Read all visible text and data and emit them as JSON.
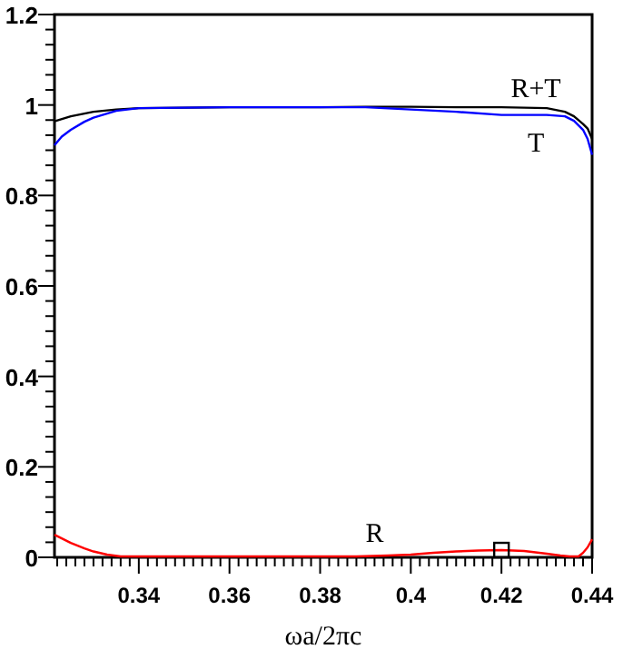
{
  "chart_data": {
    "type": "line",
    "xlabel": "ωa/2πc",
    "xlim": [
      0.3214,
      0.44
    ],
    "xticks": [
      0.34,
      0.36,
      0.38,
      0.4,
      0.42,
      0.44,
      {
        "value": 0.322,
        "label": null
      },
      {
        "value": 0.324,
        "label": null
      },
      {
        "value": 0.326,
        "label": null
      },
      {
        "value": 0.328,
        "label": null
      },
      {
        "value": 0.33,
        "label": null
      },
      {
        "value": 0.332,
        "label": null
      },
      {
        "value": 0.334,
        "label": null
      },
      {
        "value": 0.336,
        "label": null
      },
      {
        "value": 0.338,
        "label": null
      },
      {
        "value": 0.342,
        "label": null
      },
      {
        "value": 0.344,
        "label": null
      },
      {
        "value": 0.346,
        "label": null
      },
      {
        "value": 0.348,
        "label": null
      },
      {
        "value": 0.35,
        "label": null
      },
      {
        "value": 0.352,
        "label": null
      },
      {
        "value": 0.354,
        "label": null
      },
      {
        "value": 0.356,
        "label": null
      },
      {
        "value": 0.358,
        "label": null
      },
      {
        "value": 0.362,
        "label": null
      },
      {
        "value": 0.364,
        "label": null
      },
      {
        "value": 0.366,
        "label": null
      },
      {
        "value": 0.368,
        "label": null
      },
      {
        "value": 0.37,
        "label": null
      },
      {
        "value": 0.372,
        "label": null
      },
      {
        "value": 0.374,
        "label": null
      },
      {
        "value": 0.376,
        "label": null
      },
      {
        "value": 0.378,
        "label": null
      },
      {
        "value": 0.382,
        "label": null
      },
      {
        "value": 0.384,
        "label": null
      },
      {
        "value": 0.386,
        "label": null
      },
      {
        "value": 0.388,
        "label": null
      },
      {
        "value": 0.39,
        "label": null
      },
      {
        "value": 0.392,
        "label": null
      },
      {
        "value": 0.394,
        "label": null
      },
      {
        "value": 0.396,
        "label": null
      },
      {
        "value": 0.398,
        "label": null
      },
      {
        "value": 0.402,
        "label": null
      },
      {
        "value": 0.404,
        "label": null
      },
      {
        "value": 0.406,
        "label": null
      },
      {
        "value": 0.408,
        "label": null
      },
      {
        "value": 0.41,
        "label": null
      },
      {
        "value": 0.412,
        "label": null
      },
      {
        "value": 0.414,
        "label": null
      },
      {
        "value": 0.416,
        "label": null
      },
      {
        "value": 0.418,
        "label": null
      },
      {
        "value": 0.422,
        "label": null
      },
      {
        "value": 0.424,
        "label": null
      },
      {
        "value": 0.426,
        "label": null
      },
      {
        "value": 0.428,
        "label": null
      },
      {
        "value": 0.43,
        "label": null
      },
      {
        "value": 0.432,
        "label": null
      },
      {
        "value": 0.434,
        "label": null
      },
      {
        "value": 0.436,
        "label": null
      },
      {
        "value": 0.438,
        "label": null
      }
    ],
    "ylim": [
      0,
      1.2
    ],
    "yticks": [
      0,
      0.2,
      0.4,
      0.6,
      0.8,
      1,
      1.2,
      {
        "value": 0.0333,
        "label": null
      },
      {
        "value": 0.0667,
        "label": null
      },
      {
        "value": 0.1,
        "label": null
      },
      {
        "value": 0.1333,
        "label": null
      },
      {
        "value": 0.1667,
        "label": null
      },
      {
        "value": 0.2333,
        "label": null
      },
      {
        "value": 0.2667,
        "label": null
      },
      {
        "value": 0.3,
        "label": null
      },
      {
        "value": 0.3333,
        "label": null
      },
      {
        "value": 0.3667,
        "label": null
      },
      {
        "value": 0.4333,
        "label": null
      },
      {
        "value": 0.4667,
        "label": null
      },
      {
        "value": 0.5,
        "label": null
      },
      {
        "value": 0.5333,
        "label": null
      },
      {
        "value": 0.5667,
        "label": null
      },
      {
        "value": 0.6333,
        "label": null
      },
      {
        "value": 0.6667,
        "label": null
      },
      {
        "value": 0.7,
        "label": null
      },
      {
        "value": 0.7333,
        "label": null
      },
      {
        "value": 0.7667,
        "label": null
      },
      {
        "value": 0.8333,
        "label": null
      },
      {
        "value": 0.8667,
        "label": null
      },
      {
        "value": 0.9,
        "label": null
      },
      {
        "value": 0.9333,
        "label": null
      },
      {
        "value": 0.9667,
        "label": null
      },
      {
        "value": 1.0333,
        "label": null
      },
      {
        "value": 1.0667,
        "label": null
      },
      {
        "value": 1.1,
        "label": null
      },
      {
        "value": 1.1333,
        "label": null
      },
      {
        "value": 1.1667,
        "label": null
      }
    ],
    "grid": false,
    "marker": "none",
    "line_style": "solid",
    "series": [
      {
        "name": "R+T",
        "color": "#000000",
        "x": [
          0.3214,
          0.325,
          0.33,
          0.335,
          0.34,
          0.36,
          0.38,
          0.39,
          0.4,
          0.41,
          0.42,
          0.43,
          0.434,
          0.436,
          0.438,
          0.439,
          0.44
        ],
        "values": [
          0.964,
          0.975,
          0.985,
          0.99,
          0.993,
          0.995,
          0.995,
          0.996,
          0.996,
          0.995,
          0.995,
          0.993,
          0.985,
          0.975,
          0.958,
          0.948,
          0.925
        ]
      },
      {
        "name": "T",
        "color": "#0000ff",
        "x": [
          0.3214,
          0.323,
          0.325,
          0.328,
          0.33,
          0.335,
          0.34,
          0.36,
          0.38,
          0.39,
          0.4,
          0.41,
          0.42,
          0.43,
          0.434,
          0.436,
          0.438,
          0.439,
          0.44
        ],
        "values": [
          0.911,
          0.93,
          0.945,
          0.963,
          0.972,
          0.987,
          0.993,
          0.995,
          0.995,
          0.995,
          0.99,
          0.985,
          0.978,
          0.978,
          0.975,
          0.965,
          0.945,
          0.925,
          0.89
        ]
      },
      {
        "name": "R",
        "color": "#ff0000",
        "x": [
          0.3214,
          0.325,
          0.328,
          0.33,
          0.333,
          0.336,
          0.388,
          0.395,
          0.4,
          0.405,
          0.41,
          0.415,
          0.42,
          0.425,
          0.43,
          0.433,
          0.435,
          0.437,
          0.438,
          0.439,
          0.44
        ],
        "values": [
          0.05,
          0.032,
          0.02,
          0.013,
          0.006,
          0.002,
          0.002,
          0.004,
          0.006,
          0.01,
          0.013,
          0.015,
          0.016,
          0.014,
          0.008,
          0.004,
          0.002,
          0.002,
          0.01,
          0.022,
          0.04
        ]
      },
      {
        "type": "scatter",
        "marker": "square",
        "color": "#000000",
        "x": [
          0.42
        ],
        "values": [
          0.016
        ]
      }
    ]
  }
}
